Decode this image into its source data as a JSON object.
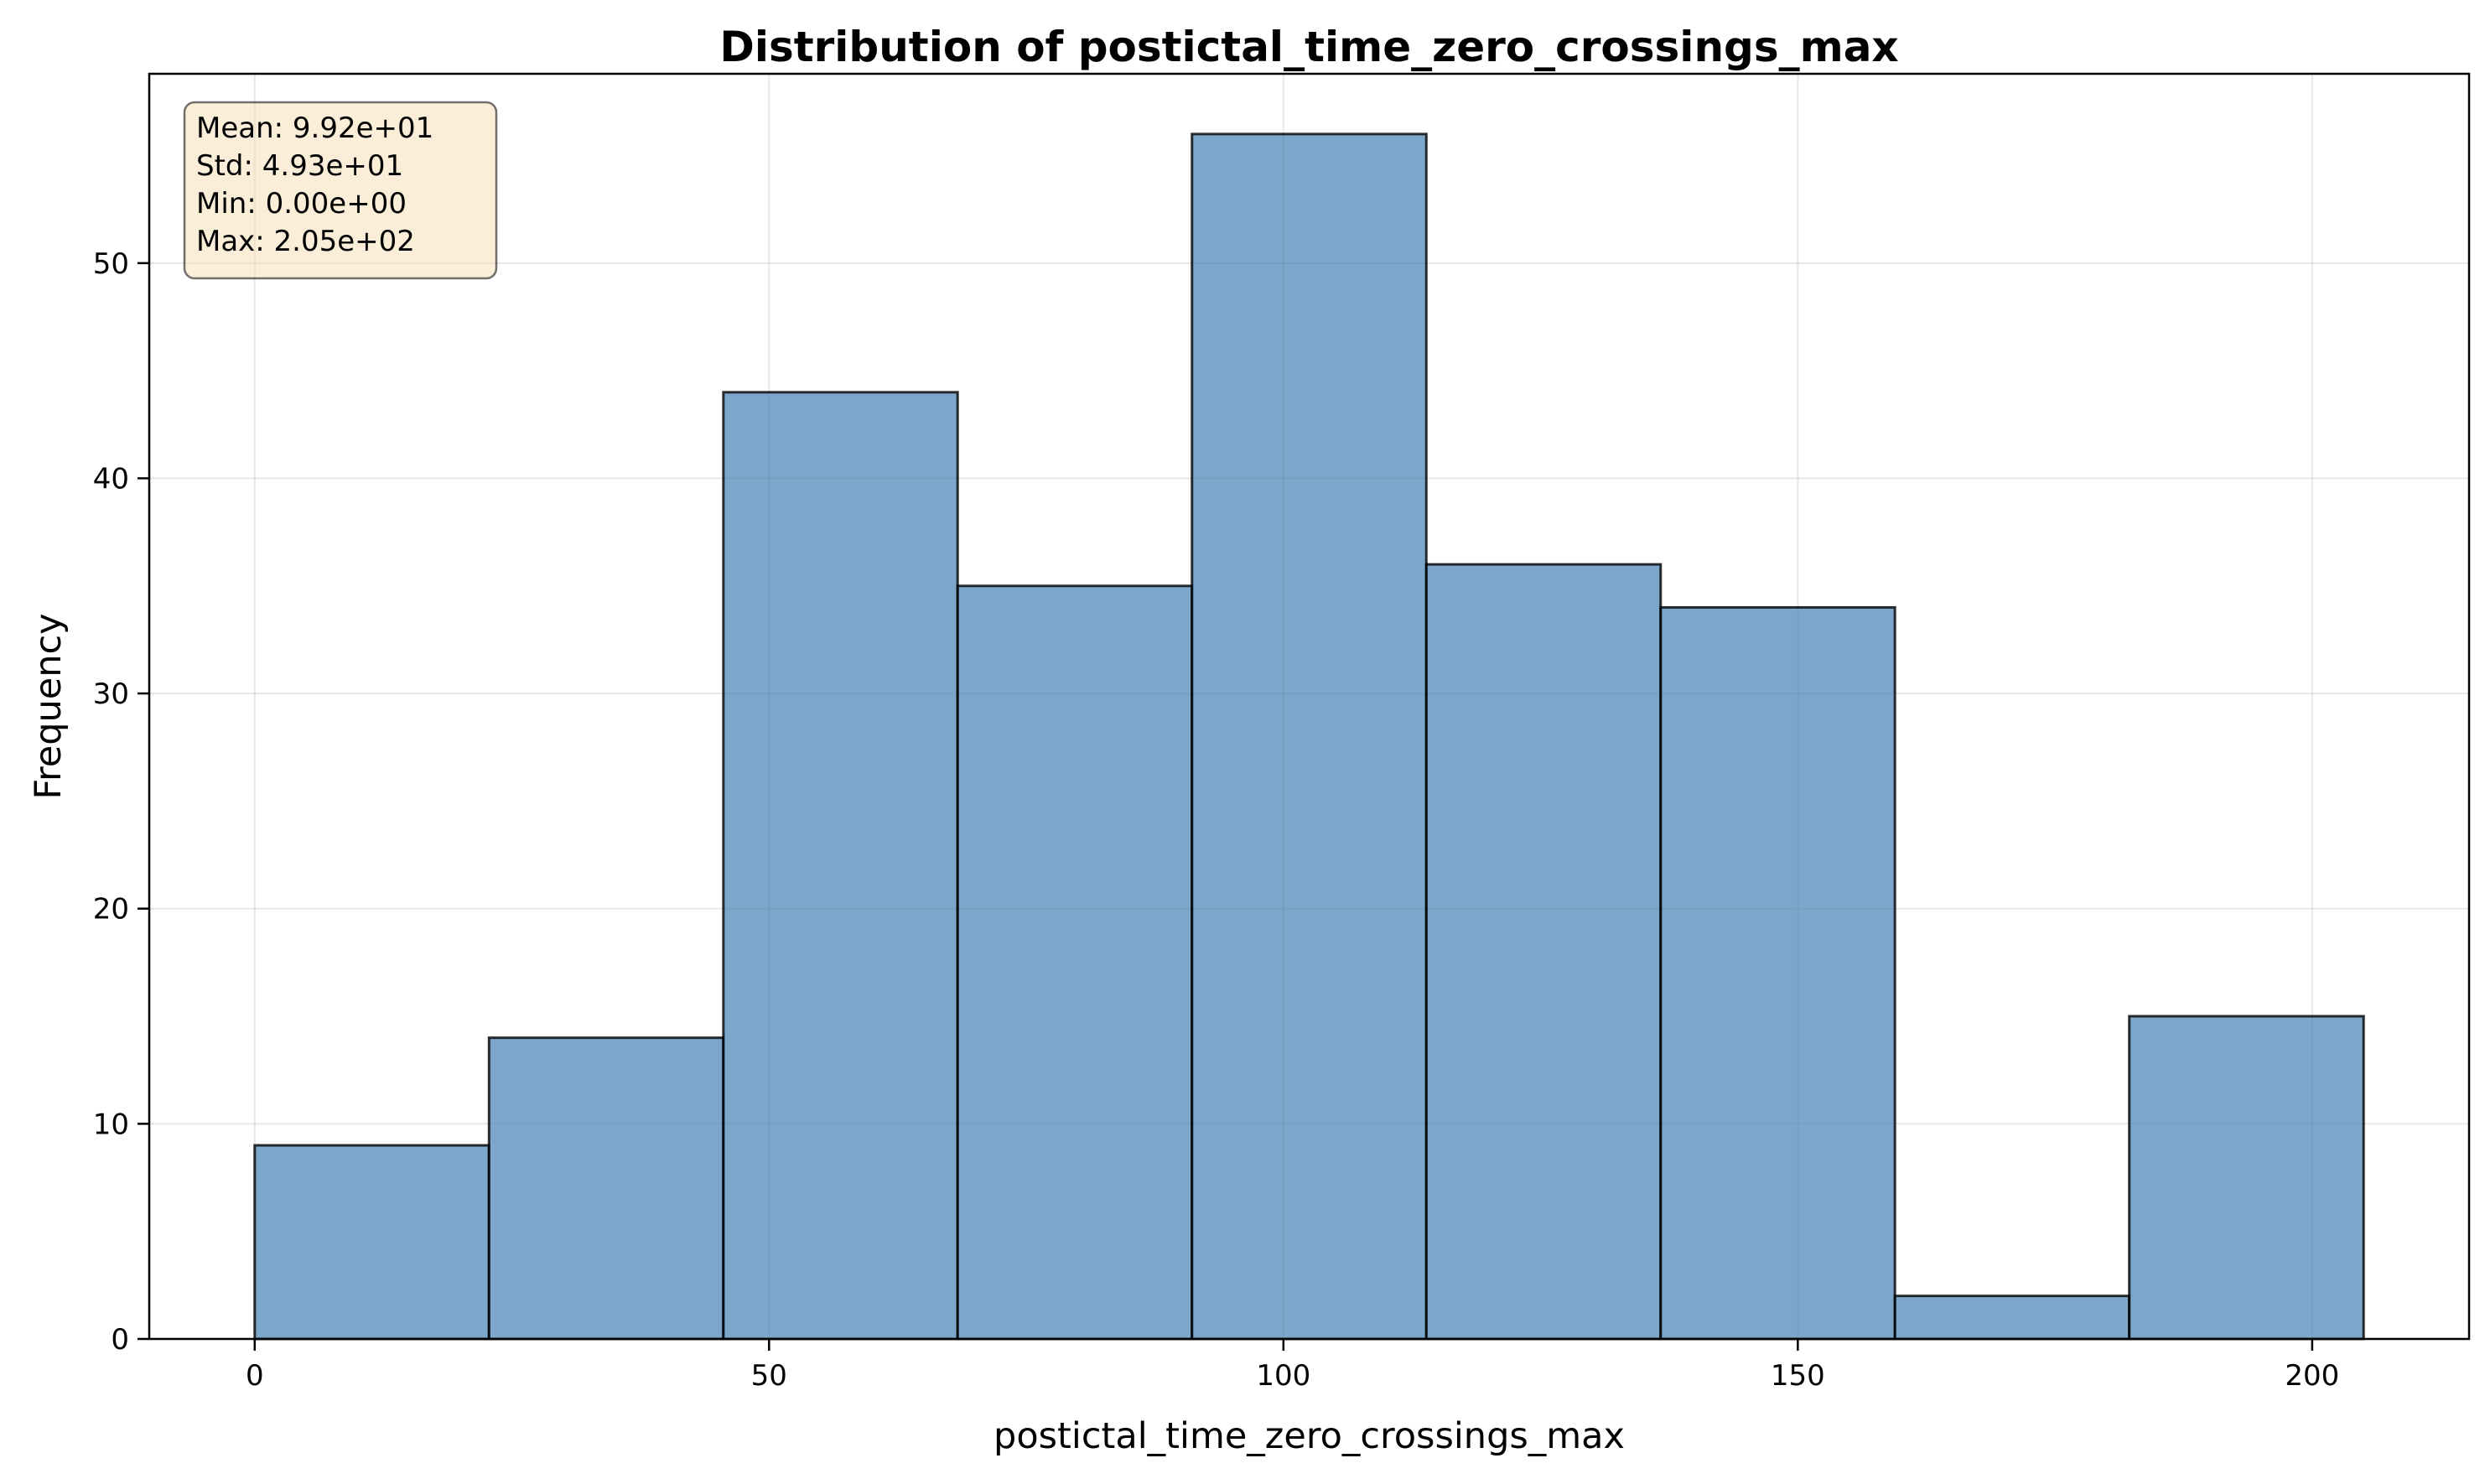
{
  "chart_data": {
    "type": "bar",
    "title": "Distribution of postictal_time_zero_crossings_max",
    "xlabel": "postictal_time_zero_crossings_max",
    "ylabel": "Frequency",
    "bins": [
      {
        "start": 0.0,
        "end": 22.78,
        "count": 9
      },
      {
        "start": 22.78,
        "end": 45.56,
        "count": 14
      },
      {
        "start": 45.56,
        "end": 68.33,
        "count": 44
      },
      {
        "start": 68.33,
        "end": 91.11,
        "count": 35
      },
      {
        "start": 91.11,
        "end": 113.89,
        "count": 56
      },
      {
        "start": 113.89,
        "end": 136.67,
        "count": 36
      },
      {
        "start": 136.67,
        "end": 159.44,
        "count": 34
      },
      {
        "start": 159.44,
        "end": 182.22,
        "count": 2
      },
      {
        "start": 182.22,
        "end": 205.0,
        "count": 15
      }
    ],
    "xlim": [
      -10.25,
      215.25
    ],
    "ylim": [
      0,
      58.8
    ],
    "xticks": [
      0,
      50,
      100,
      150,
      200
    ],
    "yticks": [
      0,
      10,
      20,
      30,
      40,
      50
    ],
    "grid": true,
    "bar_color": "#4682b4",
    "bar_edge_color": "#000000",
    "stats_box": {
      "lines": [
        "Mean: 9.92e+01",
        "Std: 4.93e+01",
        "Min: 0.00e+00",
        "Max: 2.05e+02"
      ],
      "background": "#f5deb3",
      "placement": "top-left"
    }
  }
}
